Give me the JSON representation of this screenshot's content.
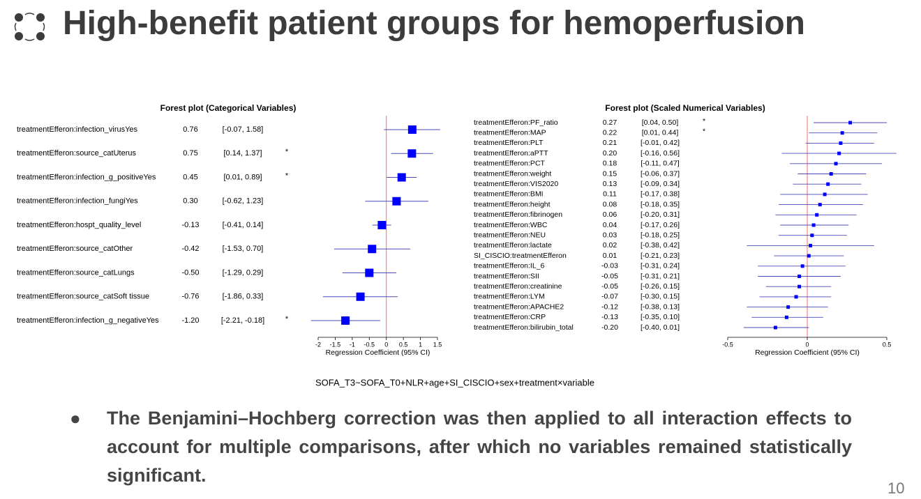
{
  "slide": {
    "title": "High-benefit patient groups for hemoperfusion",
    "formula": "SOFA_T3~SOFA_T0+NLR+age+SI_CISCIO+sex+treatment×variable",
    "bullet": "The Benjamini–Hochberg correction was then applied to all interaction effects to account for multiple comparisons, after which no variables remained statistically significant.",
    "page_number": "10"
  },
  "chart_data": [
    {
      "type": "forest",
      "title": "Forest plot (Categorical Variables)",
      "x_label": "Regression Coefficient (95% CI)",
      "labels": [
        "treatmentEfferon:infection_virusYes",
        "treatmentEfferon:source_catUterus",
        "treatmentEfferon:infection_g_positiveYes",
        "treatmentEfferon:infection_fungiYes",
        "treatmentEfferon:hospt_quality_level",
        "treatmentEfferon:source_catOther",
        "treatmentEfferon:source_catLungs",
        "treatmentEfferon:source_catSoft tissue",
        "treatmentEfferon:infection_g_negativeYes"
      ],
      "values": [
        0.76,
        0.75,
        0.45,
        0.3,
        -0.13,
        -0.42,
        -0.5,
        -0.76,
        -1.2
      ],
      "value_labels": [
        "0.76",
        "0.75",
        "0.45",
        "0.30",
        "-0.13",
        "-0.42",
        "-0.50",
        "-0.76",
        "-1.20"
      ],
      "lower": [
        -0.07,
        0.14,
        0.01,
        -0.62,
        -0.41,
        -1.53,
        -1.29,
        -1.86,
        -2.21
      ],
      "upper": [
        1.58,
        1.37,
        0.89,
        1.23,
        0.14,
        0.7,
        0.29,
        0.33,
        -0.18
      ],
      "ci_labels": [
        "[-0.07, 1.58]",
        "[0.14, 1.37]",
        "[0.01, 0.89]",
        "[-0.62, 1.23]",
        "[-0.41, 0.14]",
        "[-1.53, 0.70]",
        "[-1.29, 0.29]",
        "[-1.86, 0.33]",
        "[-2.21, -0.18]"
      ],
      "significance": [
        null,
        "*",
        "*",
        null,
        null,
        null,
        null,
        null,
        "*"
      ],
      "xlim": [
        -2,
        1.5
      ],
      "xticks": [
        -2,
        -1.5,
        -1,
        -0.5,
        0,
        0.5,
        1,
        1.5
      ],
      "ref_line": 0,
      "color": "#0000ff",
      "ci_color": "#4848b8",
      "ref_line_color": "#ff6a6a"
    },
    {
      "type": "forest",
      "title": "Forest plot (Scaled Numerical Variables)",
      "x_label": "Regression Coefficient (95% CI)",
      "labels": [
        "treatmentEfferon:PF_ratio",
        "treatmentEfferon:MAP",
        "treatmentEfferon:PLT",
        "treatmentEfferon:aPTT",
        "treatmentEfferon:PCT",
        "treatmentEfferon:weight",
        "treatmentEfferon:VIS2020",
        "treatmentEfferon:BMI",
        "treatmentEfferon:height",
        "treatmentEfferon:fibrinogen",
        "treatmentEfferon:WBC",
        "treatmentEfferon:NEU",
        "treatmentEfferon:lactate",
        "SI_CISCIO:treatmentEfferon",
        "treatmentEfferon:IL_6",
        "treatmentEfferon:SII",
        "treatmentEfferon:creatinine",
        "treatmentEfferon:LYM",
        "treatmentEfferon:APACHE2",
        "treatmentEfferon:CRP",
        "treatmentEfferon:bilirubin_total"
      ],
      "values": [
        0.27,
        0.22,
        0.21,
        0.2,
        0.18,
        0.15,
        0.13,
        0.11,
        0.08,
        0.06,
        0.04,
        0.03,
        0.02,
        0.01,
        -0.03,
        -0.05,
        -0.05,
        -0.07,
        -0.12,
        -0.13,
        -0.2
      ],
      "value_labels": [
        "0.27",
        "0.22",
        "0.21",
        "0.20",
        "0.18",
        "0.15",
        "0.13",
        "0.11",
        "0.08",
        "0.06",
        "0.04",
        "0.03",
        "0.02",
        "0.01",
        "-0.03",
        "-0.05",
        "-0.05",
        "-0.07",
        "-0.12",
        "-0.13",
        "-0.20"
      ],
      "lower": [
        0.04,
        0.01,
        -0.01,
        -0.16,
        -0.11,
        -0.06,
        -0.09,
        -0.17,
        -0.18,
        -0.2,
        -0.17,
        -0.18,
        -0.38,
        -0.21,
        -0.31,
        -0.31,
        -0.26,
        -0.3,
        -0.38,
        -0.35,
        -0.4
      ],
      "upper": [
        0.5,
        0.44,
        0.42,
        0.56,
        0.47,
        0.37,
        0.34,
        0.38,
        0.35,
        0.31,
        0.26,
        0.25,
        0.42,
        0.23,
        0.24,
        0.21,
        0.15,
        0.15,
        0.13,
        0.1,
        0.01
      ],
      "ci_labels": [
        "[0.04, 0.50]",
        "[0.01, 0.44]",
        "[-0.01, 0.42]",
        "[-0.16, 0.56]",
        "[-0.11, 0.47]",
        "[-0.06, 0.37]",
        "[-0.09, 0.34]",
        "[-0.17, 0.38]",
        "[-0.18, 0.35]",
        "[-0.20, 0.31]",
        "[-0.17, 0.26]",
        "[-0.18, 0.25]",
        "[-0.38, 0.42]",
        "[-0.21, 0.23]",
        "[-0.31, 0.24]",
        "[-0.31, 0.21]",
        "[-0.26, 0.15]",
        "[-0.30, 0.15]",
        "[-0.38, 0.13]",
        "[-0.35, 0.10]",
        "[-0.40, 0.01]"
      ],
      "significance": [
        "*",
        "*",
        null,
        null,
        null,
        null,
        null,
        null,
        null,
        null,
        null,
        null,
        null,
        null,
        null,
        null,
        null,
        null,
        null,
        null,
        null
      ],
      "xlim": [
        -0.5,
        0.5
      ],
      "xticks": [
        -0.5,
        0,
        0.5
      ],
      "ref_line": 0,
      "color": "#0000ff",
      "ci_color": "#4848b8",
      "ref_line_color": "#ff6a6a"
    }
  ]
}
